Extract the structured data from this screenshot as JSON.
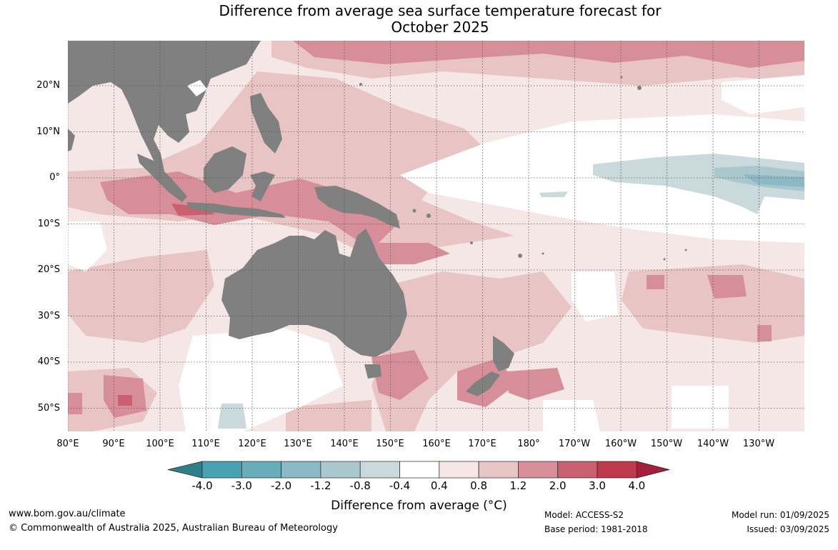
{
  "title": {
    "line1": "Difference from average sea surface temperature forecast for",
    "line2": "October 2025"
  },
  "map": {
    "lat_labels": [
      "20°N",
      "10°N",
      "0°",
      "10°S",
      "20°S",
      "30°S",
      "40°S",
      "50°S"
    ],
    "lon_labels": [
      "80°E",
      "90°E",
      "100°E",
      "110°E",
      "120°E",
      "130°E",
      "140°E",
      "150°E",
      "160°E",
      "170°E",
      "180°",
      "170°W",
      "160°W",
      "150°W",
      "140°W",
      "130°W"
    ],
    "land_color": "#808080",
    "gridlines": "dotted"
  },
  "colorbar": {
    "ticks": [
      "-4.0",
      "-3.0",
      "-2.0",
      "-1.2",
      "-0.8",
      "-0.4",
      "0.4",
      "0.8",
      "1.2",
      "2.0",
      "3.0",
      "4.0"
    ],
    "colors": [
      "#2e7f8a",
      "#48a2b2",
      "#6aadba",
      "#8cbac4",
      "#aac7cd",
      "#c9d9dc",
      "#ffffff",
      "#f5e7e6",
      "#e8c4c4",
      "#d68e98",
      "#c9606f",
      "#bd3a4b",
      "#a41f3e"
    ],
    "label": "Difference from average (°C)"
  },
  "footer": {
    "url": "www.bom.gov.au/climate",
    "copyright": "© Commonwealth of Australia 2025, Australian Bureau of Meteorology",
    "model": "Model: ACCESS-S2",
    "base_period": "Base period: 1981-2018",
    "model_run": "Model run: 01/09/2025",
    "issued": "Issued: 03/09/2025"
  }
}
